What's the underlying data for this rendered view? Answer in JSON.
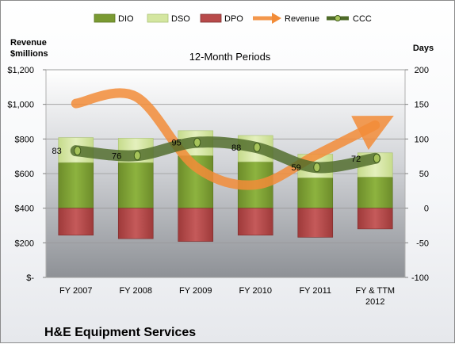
{
  "company": "H&E Equipment Services",
  "chart_data": {
    "type": "bar",
    "title": "12-Month Periods",
    "left_axis_label": [
      "Revenue",
      "$millions"
    ],
    "right_axis_label": "Days",
    "categories": [
      [
        "FY 2007"
      ],
      [
        "FY 2008"
      ],
      [
        "FY 2009"
      ],
      [
        "FY 2010"
      ],
      [
        "FY 2011"
      ],
      [
        "FY & TTM",
        "2012"
      ]
    ],
    "left_ylim": [
      0,
      1200
    ],
    "left_ticks": [
      0,
      200,
      400,
      600,
      800,
      1000,
      1200
    ],
    "left_tick_labels": [
      "$-",
      "$200",
      "$400",
      "$600",
      "$800",
      "$1,000",
      "$1,200"
    ],
    "right_ylim": [
      -100,
      200
    ],
    "right_ticks": [
      -100,
      -50,
      0,
      50,
      100,
      150,
      200
    ],
    "right_tick_labels": [
      "-100",
      "-50",
      "0",
      "50",
      "100",
      "150",
      "200"
    ],
    "legend_position": "top",
    "series": [
      {
        "name": "DIO",
        "axis": "right",
        "kind": "stacked-bar",
        "color": "#7a9a32",
        "values": [
          66,
          66,
          76,
          67,
          44,
          45
        ]
      },
      {
        "name": "DSO",
        "axis": "right",
        "kind": "stacked-bar",
        "color": "#d4e6a0",
        "values": [
          36,
          35,
          36,
          38,
          34,
          35
        ]
      },
      {
        "name": "DPO",
        "axis": "right",
        "kind": "stacked-bar",
        "color": "#b84a4a",
        "values": [
          -39,
          -44,
          -48,
          -39,
          -42,
          -30
        ]
      },
      {
        "name": "Revenue",
        "axis": "left",
        "kind": "line",
        "color": "#f28c38",
        "values": [
          1005,
          1045,
          640,
          535,
          705,
          880
        ]
      },
      {
        "name": "CCC",
        "axis": "right",
        "kind": "line",
        "color": "#4e6a28",
        "values": [
          83,
          76,
          95,
          88,
          59,
          72
        ]
      }
    ],
    "ccc_labels": [
      "83",
      "76",
      "95",
      "88",
      "59",
      "72"
    ]
  }
}
